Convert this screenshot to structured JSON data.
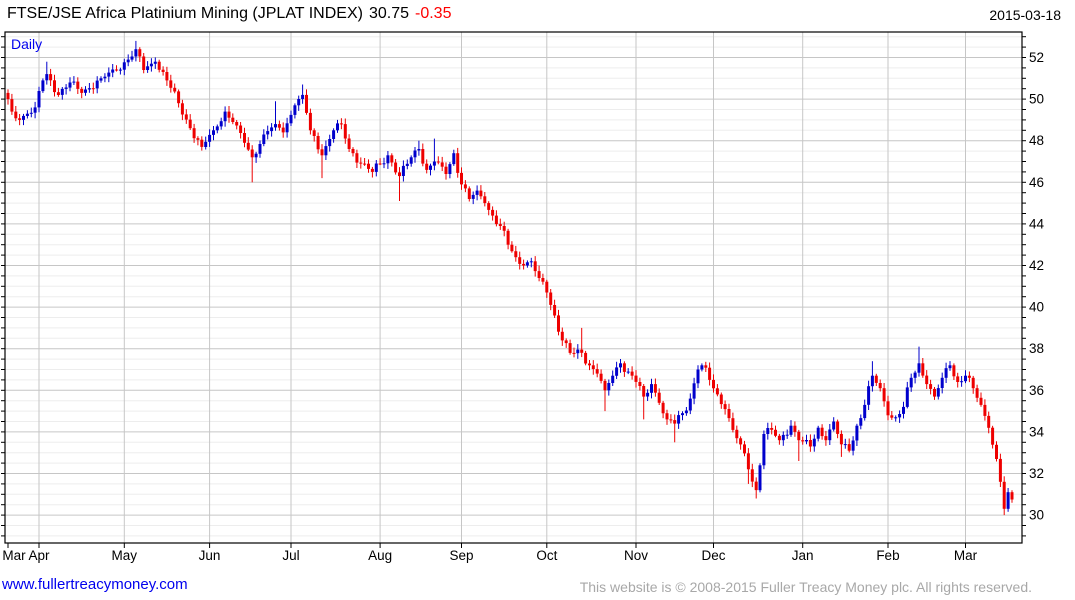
{
  "header": {
    "title": "FTSE/JSE Africa Platinium Mining (JPLAT INDEX)",
    "last_price": "30.75",
    "change": "-0.35",
    "date": "2015-03-18"
  },
  "footer": {
    "site_link": "www.fullertreacymoney.com",
    "copyright": "This website is © 2008-2015 Fuller Treacy Money plc. All rights reserved."
  },
  "chart_data": {
    "type": "candlestick",
    "title": "FTSE/JSE Africa Platinium Mining (JPLAT INDEX)",
    "frequency_label": "Daily",
    "last_price": 30.75,
    "change": -0.35,
    "as_of_date": "2015-03-18",
    "x_axis": {
      "start_date": "2014-03-20",
      "end_date": "2015-03-18",
      "month_labels": [
        "Mar",
        "Apr",
        "May",
        "Jun",
        "Jul",
        "Aug",
        "Sep",
        "Oct",
        "Nov",
        "Dec",
        "Jan",
        "Feb",
        "Mar"
      ],
      "grid": "month-boundaries"
    },
    "y_axis": {
      "side": "right",
      "label_min": 30,
      "label_max": 52,
      "label_step": 2,
      "minor_step": 0.5,
      "view_min": 28.7,
      "view_max": 53.2
    },
    "colors": {
      "up_candle": "#0000cc",
      "down_candle": "#ee0000",
      "grid_minor": "#ededed",
      "grid_major": "#c6c6c6",
      "axis": "#000000",
      "frequency_label": "#0000ee",
      "change_text": "#ff0000",
      "link": "#0000ee",
      "copyright": "#a8a8a8"
    },
    "price_anchors_note": "close anchors read from chart; optional 3rd/4th items give wick extreme hints (h=high spike, l=low spike)",
    "anchors": [
      [
        "2014-03-20",
        50.0
      ],
      [
        "2014-03-21",
        49.4
      ],
      [
        "2014-03-25",
        49.0
      ],
      [
        "2014-03-27",
        49.3
      ],
      [
        "2014-03-31",
        49.6
      ],
      [
        "2014-04-02",
        50.9
      ],
      [
        "2014-04-03",
        51.2,
        "h",
        51.8
      ],
      [
        "2014-04-08",
        50.2
      ],
      [
        "2014-04-11",
        50.8
      ],
      [
        "2014-04-16",
        50.3
      ],
      [
        "2014-04-23",
        51.0
      ],
      [
        "2014-04-29",
        51.4
      ],
      [
        "2014-05-02",
        51.9
      ],
      [
        "2014-05-06",
        52.4,
        "h",
        52.8
      ],
      [
        "2014-05-08",
        51.4
      ],
      [
        "2014-05-13",
        51.8
      ],
      [
        "2014-05-16",
        50.9
      ],
      [
        "2014-05-21",
        49.8
      ],
      [
        "2014-05-26",
        48.6
      ],
      [
        "2014-05-29",
        47.7
      ],
      [
        "2014-06-03",
        48.5
      ],
      [
        "2014-06-06",
        49.4
      ],
      [
        "2014-06-10",
        48.9
      ],
      [
        "2014-06-13",
        47.9
      ],
      [
        "2014-06-17",
        47.2,
        "l",
        46.0
      ],
      [
        "2014-06-20",
        48.3
      ],
      [
        "2014-06-25",
        48.8,
        "h",
        49.9
      ],
      [
        "2014-06-27",
        48.4
      ],
      [
        "2014-07-02",
        49.7
      ],
      [
        "2014-07-04",
        50.2,
        "h",
        50.7
      ],
      [
        "2014-07-08",
        48.5
      ],
      [
        "2014-07-11",
        47.3,
        "l",
        46.2
      ],
      [
        "2014-07-16",
        48.5
      ],
      [
        "2014-07-18",
        48.8
      ],
      [
        "2014-07-22",
        47.6
      ],
      [
        "2014-07-25",
        46.9
      ],
      [
        "2014-07-30",
        46.5
      ],
      [
        "2014-08-01",
        46.9
      ],
      [
        "2014-08-05",
        47.3
      ],
      [
        "2014-08-08",
        46.3,
        "l",
        45.1
      ],
      [
        "2014-08-13",
        47.2
      ],
      [
        "2014-08-15",
        47.6,
        "h",
        48.0
      ],
      [
        "2014-08-19",
        46.6
      ],
      [
        "2014-08-21",
        47.0,
        "h",
        48.1
      ],
      [
        "2014-08-26",
        46.4
      ],
      [
        "2014-08-28",
        47.4
      ],
      [
        "2014-09-01",
        45.9
      ],
      [
        "2014-09-03",
        45.2
      ],
      [
        "2014-09-05",
        45.6
      ],
      [
        "2014-09-09",
        45.0
      ],
      [
        "2014-09-11",
        44.4
      ],
      [
        "2014-09-15",
        43.9
      ],
      [
        "2014-09-17",
        43.0
      ],
      [
        "2014-09-19",
        42.4
      ],
      [
        "2014-09-23",
        42.0
      ],
      [
        "2014-09-25",
        42.2
      ],
      [
        "2014-09-29",
        41.4
      ],
      [
        "2014-10-01",
        40.7
      ],
      [
        "2014-10-03",
        39.6
      ],
      [
        "2014-10-07",
        38.4
      ],
      [
        "2014-10-09",
        37.8
      ],
      [
        "2014-10-14",
        37.8,
        "h",
        39.0
      ],
      [
        "2014-10-16",
        37.2
      ],
      [
        "2014-10-20",
        36.8
      ],
      [
        "2014-10-22",
        36.0,
        "l",
        35.0
      ],
      [
        "2014-10-24",
        36.7
      ],
      [
        "2014-10-28",
        37.3
      ],
      [
        "2014-10-30",
        36.9
      ],
      [
        "2014-11-03",
        36.4
      ],
      [
        "2014-11-05",
        35.7,
        "l",
        34.6
      ],
      [
        "2014-11-07",
        36.3
      ],
      [
        "2014-11-11",
        35.4
      ],
      [
        "2014-11-13",
        34.6
      ],
      [
        "2014-11-17",
        34.4,
        "l",
        33.5
      ],
      [
        "2014-11-19",
        34.9
      ],
      [
        "2014-11-21",
        35.6
      ],
      [
        "2014-11-25",
        37.0
      ],
      [
        "2014-11-26",
        37.2
      ],
      [
        "2014-11-28",
        36.5
      ],
      [
        "2014-12-02",
        35.8
      ],
      [
        "2014-12-04",
        35.1
      ],
      [
        "2014-12-08",
        34.1
      ],
      [
        "2014-12-10",
        33.4
      ],
      [
        "2014-12-12",
        32.2,
        "l",
        31.5
      ],
      [
        "2014-12-16",
        31.2,
        "l",
        30.8
      ],
      [
        "2014-12-18",
        33.9
      ],
      [
        "2014-12-22",
        34.1
      ],
      [
        "2014-12-24",
        33.6
      ],
      [
        "2014-12-29",
        34.3
      ],
      [
        "2014-12-31",
        33.6,
        "l",
        32.6
      ],
      [
        "2015-01-05",
        33.3
      ],
      [
        "2015-01-07",
        34.2
      ],
      [
        "2015-01-09",
        33.6
      ],
      [
        "2015-01-13",
        34.5
      ],
      [
        "2015-01-15",
        33.4,
        "l",
        32.8
      ],
      [
        "2015-01-19",
        33.1
      ],
      [
        "2015-01-21",
        34.3
      ],
      [
        "2015-01-23",
        35.3
      ],
      [
        "2015-01-27",
        36.7,
        "h",
        37.4
      ],
      [
        "2015-01-29",
        36.1
      ],
      [
        "2015-02-02",
        34.8
      ],
      [
        "2015-02-04",
        34.7
      ],
      [
        "2015-02-06",
        35.2
      ],
      [
        "2015-02-10",
        36.6
      ],
      [
        "2015-02-12",
        37.3,
        "h",
        38.1
      ],
      [
        "2015-02-16",
        36.3
      ],
      [
        "2015-02-18",
        35.7
      ],
      [
        "2015-02-20",
        36.6
      ],
      [
        "2015-02-24",
        37.2
      ],
      [
        "2015-02-26",
        36.4
      ],
      [
        "2015-03-02",
        36.7
      ],
      [
        "2015-03-04",
        36.1
      ],
      [
        "2015-03-06",
        35.3
      ],
      [
        "2015-03-10",
        34.2
      ],
      [
        "2015-03-12",
        32.7
      ],
      [
        "2015-03-13",
        31.6
      ],
      [
        "2015-03-16",
        30.3,
        "l",
        30.0
      ],
      [
        "2015-03-17",
        31.1
      ],
      [
        "2015-03-18",
        30.75
      ]
    ]
  }
}
